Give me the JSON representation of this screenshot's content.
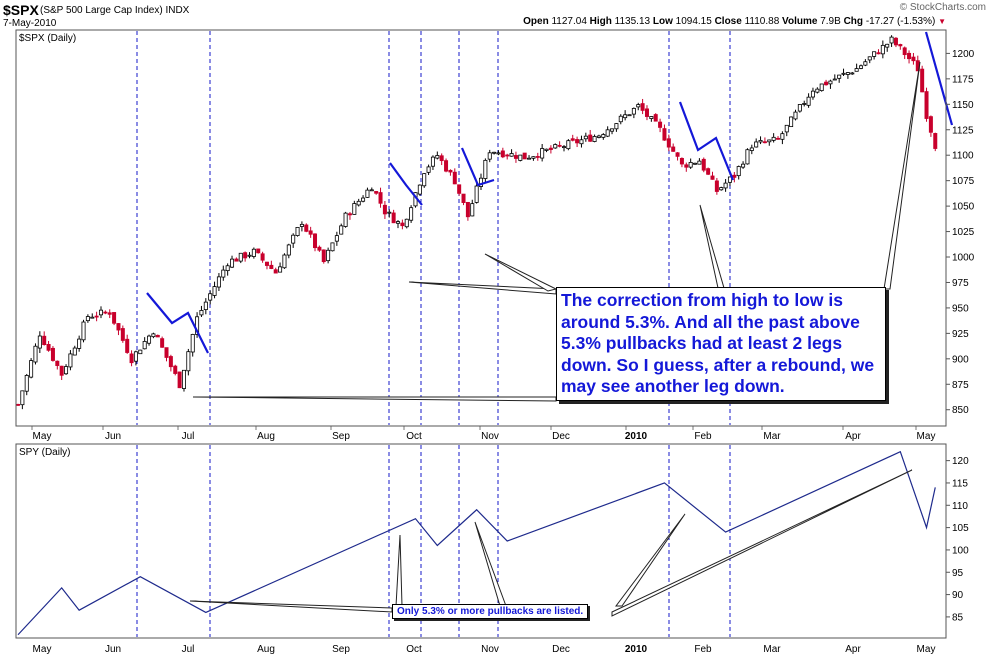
{
  "header": {
    "symbol": "$SPX",
    "name": "(S&P 500 Large Cap Index)",
    "exchange": "INDX",
    "date": "7-May-2010",
    "open_label": "Open",
    "open": "1127.04",
    "high_label": "High",
    "high": "1135.13",
    "low_label": "Low",
    "low": "1094.15",
    "close_label": "Close",
    "close": "1110.88",
    "volume_label": "Volume",
    "volume": "7.9B",
    "chg_label": "Chg",
    "chg": "-17.27 (-1.53%)",
    "credit": "© StockCharts.com"
  },
  "colors": {
    "up": "#000000",
    "down": "#c8002c",
    "annotation": "#1418d8",
    "line": "#1e2a8c"
  },
  "annotations": {
    "callout": "The correction from high to low is around 5.3%. And all the past above 5.3% pullbacks had at least 2 legs down. So I guess, after a rebound, we may see another leg down.",
    "note": "Only 5.3% or more pullbacks are listed."
  },
  "chart_data": [
    {
      "type": "candlestick",
      "panel_label": "$SPX (Daily)",
      "x_tick_labels": [
        "May",
        "Jun",
        "Jul",
        "Aug",
        "Sep",
        "Oct",
        "Nov",
        "Dec",
        "2010",
        "Feb",
        "Mar",
        "Apr",
        "May"
      ],
      "y_ticks": [
        850,
        875,
        900,
        925,
        950,
        975,
        1000,
        1025,
        1050,
        1075,
        1100,
        1125,
        1150,
        1175,
        1200
      ],
      "ylim": [
        835,
        1222
      ],
      "price_path": [
        {
          "x": 0,
          "y": 855
        },
        {
          "x": 5,
          "y": 925
        },
        {
          "x": 10,
          "y": 885
        },
        {
          "x": 16,
          "y": 942
        },
        {
          "x": 21,
          "y": 946
        },
        {
          "x": 26,
          "y": 900
        },
        {
          "x": 31,
          "y": 928
        },
        {
          "x": 37,
          "y": 875
        },
        {
          "x": 41,
          "y": 940
        },
        {
          "x": 48,
          "y": 995
        },
        {
          "x": 54,
          "y": 1005
        },
        {
          "x": 59,
          "y": 985
        },
        {
          "x": 65,
          "y": 1035
        },
        {
          "x": 70,
          "y": 995
        },
        {
          "x": 75,
          "y": 1040
        },
        {
          "x": 81,
          "y": 1070
        },
        {
          "x": 84,
          "y": 1045
        },
        {
          "x": 88,
          "y": 1030
        },
        {
          "x": 93,
          "y": 1085
        },
        {
          "x": 96,
          "y": 1100
        },
        {
          "x": 100,
          "y": 1075
        },
        {
          "x": 103,
          "y": 1040
        },
        {
          "x": 108,
          "y": 1105
        },
        {
          "x": 116,
          "y": 1098
        },
        {
          "x": 124,
          "y": 1108
        },
        {
          "x": 133,
          "y": 1120
        },
        {
          "x": 142,
          "y": 1148
        },
        {
          "x": 147,
          "y": 1125
        },
        {
          "x": 152,
          "y": 1090
        },
        {
          "x": 156,
          "y": 1095
        },
        {
          "x": 160,
          "y": 1065
        },
        {
          "x": 164,
          "y": 1080
        },
        {
          "x": 168,
          "y": 1110
        },
        {
          "x": 174,
          "y": 1115
        },
        {
          "x": 182,
          "y": 1165
        },
        {
          "x": 192,
          "y": 1185
        },
        {
          "x": 200,
          "y": 1213
        },
        {
          "x": 203,
          "y": 1200
        },
        {
          "x": 206,
          "y": 1185
        },
        {
          "x": 208,
          "y": 1140
        },
        {
          "x": 210,
          "y": 1110
        }
      ],
      "x_max": 212
    },
    {
      "type": "line",
      "panel_label": "SPY (Daily)",
      "x_tick_labels": [
        "May",
        "Jun",
        "Jul",
        "Aug",
        "Sep",
        "Oct",
        "Nov",
        "Dec",
        "2010",
        "Feb",
        "Mar",
        "Apr",
        "May"
      ],
      "y_ticks": [
        85,
        90,
        95,
        100,
        105,
        110,
        115,
        120
      ],
      "ylim": [
        80.5,
        123.5
      ],
      "points": [
        {
          "x": 0,
          "y": 81
        },
        {
          "x": 10,
          "y": 91.5
        },
        {
          "x": 14,
          "y": 86.5
        },
        {
          "x": 28,
          "y": 94
        },
        {
          "x": 43,
          "y": 86
        },
        {
          "x": 91,
          "y": 107
        },
        {
          "x": 96,
          "y": 101
        },
        {
          "x": 105,
          "y": 109
        },
        {
          "x": 112,
          "y": 102
        },
        {
          "x": 148,
          "y": 115
        },
        {
          "x": 162,
          "y": 104
        },
        {
          "x": 202,
          "y": 122
        },
        {
          "x": 208,
          "y": 105
        },
        {
          "x": 210,
          "y": 114
        }
      ],
      "x_max": 212
    }
  ]
}
